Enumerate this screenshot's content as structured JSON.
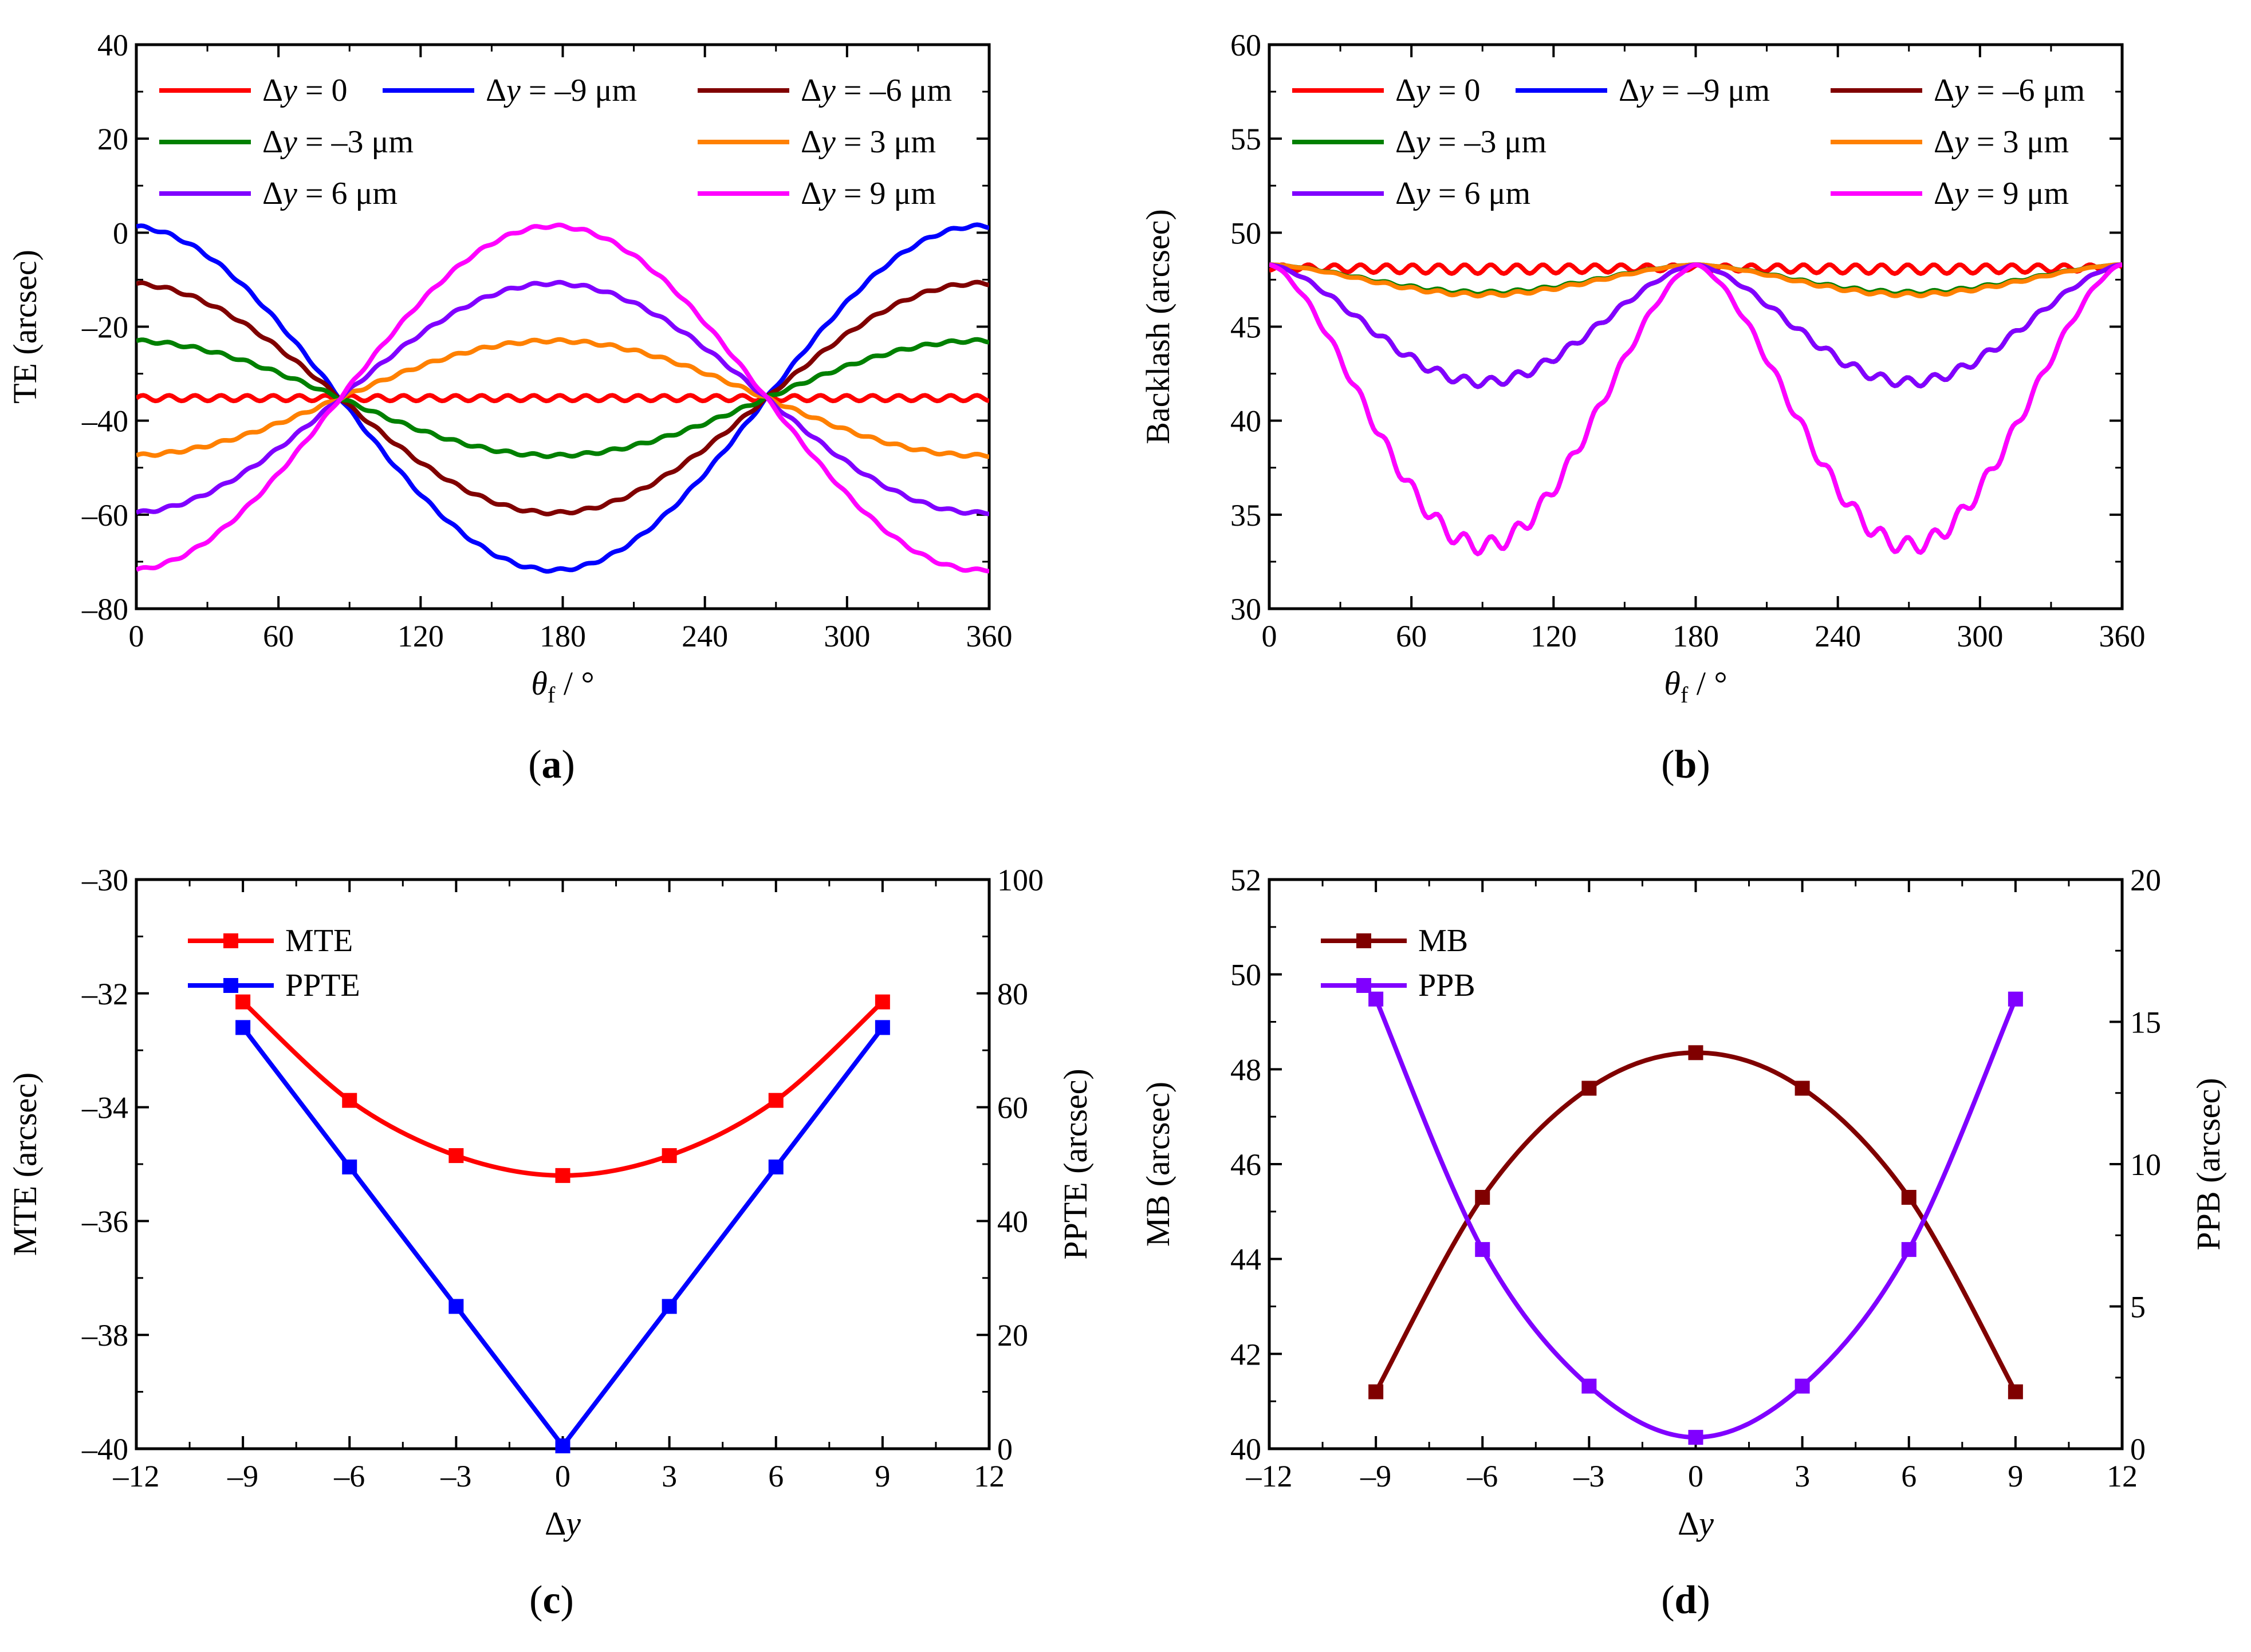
{
  "figure": {
    "panels": [
      {
        "id": "a",
        "caption": "(a)"
      },
      {
        "id": "b",
        "caption": "(b)"
      },
      {
        "id": "c",
        "caption": "(c)"
      },
      {
        "id": "d",
        "caption": "(d)"
      }
    ]
  },
  "colors": {
    "dy0": "#ff0000",
    "dym9": "#0000ff",
    "dym6": "#800000",
    "dym3": "#008000",
    "dy3": "#ff8000",
    "dy6": "#8000ff",
    "dy9": "#ff00ff"
  },
  "chart_data": [
    {
      "panel": "a",
      "type": "line",
      "xlabel": "θf / °",
      "ylabel": "TE (arcsec)",
      "xlim": [
        0,
        360
      ],
      "ylim": [
        -80,
        40
      ],
      "xticks": [
        0,
        60,
        120,
        180,
        240,
        300,
        360
      ],
      "yticks": [
        -80,
        -60,
        -40,
        -20,
        0,
        20,
        40
      ],
      "legend_position": "top",
      "model": "y = mean + amp*cos((x - 176) deg) + small ripple",
      "x_sample_step": 6,
      "series": [
        {
          "name": "Δy = 0",
          "color": "#ff0000",
          "mean": -35.2,
          "amp": 0,
          "ripple": 0.6,
          "ripple_period": 11,
          "points": [
            [
              0,
              -35.2
            ],
            [
              90,
              -35.2
            ],
            [
              180,
              -35.2
            ],
            [
              270,
              -35.2
            ],
            [
              360,
              -35.2
            ]
          ]
        },
        {
          "name": "Δy = –9 μm",
          "color": "#0000ff",
          "mean": -35.2,
          "amp": -36.6,
          "ripple": 0.3,
          "ripple_period": 11,
          "points": [
            [
              0,
              -72
            ],
            [
              90,
              -33
            ],
            [
              176,
              1.4
            ],
            [
              270,
              -38
            ],
            [
              360,
              -72
            ]
          ]
        },
        {
          "name": "Δy = –6 μm",
          "color": "#800000",
          "mean": -35.2,
          "amp": -24.4,
          "ripple": 0.3,
          "ripple_period": 11,
          "points": [
            [
              0,
              -59.6
            ],
            [
              90,
              -33.5
            ],
            [
              176,
              -10.8
            ],
            [
              270,
              -37
            ],
            [
              360,
              -59.6
            ]
          ]
        },
        {
          "name": "Δy = –3 μm",
          "color": "#008000",
          "mean": -35.2,
          "amp": -12.2,
          "ripple": 0.3,
          "ripple_period": 11,
          "points": [
            [
              0,
              -47.4
            ],
            [
              90,
              -34.3
            ],
            [
              176,
              -23
            ],
            [
              270,
              -36
            ],
            [
              360,
              -47.4
            ]
          ]
        },
        {
          "name": "Δy = 3 μm",
          "color": "#ff8000",
          "mean": -35.2,
          "amp": 12.2,
          "ripple": 0.3,
          "ripple_period": 11,
          "points": [
            [
              0,
              -23
            ],
            [
              90,
              -36
            ],
            [
              176,
              -47.4
            ],
            [
              270,
              -34.3
            ],
            [
              360,
              -23
            ]
          ]
        },
        {
          "name": "Δy = 6 μm",
          "color": "#8000ff",
          "mean": -35.2,
          "amp": 24.4,
          "ripple": 0.3,
          "ripple_period": 11,
          "points": [
            [
              0,
              -10.8
            ],
            [
              90,
              -37
            ],
            [
              176,
              -59.6
            ],
            [
              270,
              -33.5
            ],
            [
              360,
              -10.8
            ]
          ]
        },
        {
          "name": "Δy = 9 μm",
          "color": "#ff00ff",
          "mean": -35.2,
          "amp": 36.6,
          "ripple": 0.3,
          "ripple_period": 11,
          "points": [
            [
              0,
              1.4
            ],
            [
              90,
              -38
            ],
            [
              176,
              -72
            ],
            [
              270,
              -33
            ],
            [
              360,
              1.4
            ]
          ]
        }
      ]
    },
    {
      "panel": "b",
      "type": "line",
      "xlabel": "θf / °",
      "ylabel": "Backlash (arcsec)",
      "xlim": [
        0,
        360
      ],
      "ylim": [
        30,
        60
      ],
      "xticks": [
        0,
        60,
        120,
        180,
        240,
        300,
        360
      ],
      "yticks": [
        30,
        35,
        40,
        45,
        50,
        55,
        60
      ],
      "legend_position": "top",
      "model": "y = peak - dip*|sin(x deg)|^1.6 + ripple",
      "x_sample_step": 4,
      "series": [
        {
          "name": "Δy = 0",
          "color": "#ff0000",
          "peak": 48.3,
          "dip": 0,
          "ripple": 0.3,
          "ripple_period": 11,
          "points": [
            [
              0,
              48.3
            ],
            [
              90,
              48.3
            ],
            [
              180,
              48.3
            ],
            [
              270,
              48.3
            ],
            [
              360,
              48.3
            ]
          ]
        },
        {
          "name": "Δy = –9 μm",
          "color": "#0000ff",
          "peak": 48.3,
          "dip": 14.5,
          "ripple": 0.9,
          "ripple_period": 11,
          "points": [
            [
              0,
              48.3
            ],
            [
              90,
              33.8
            ],
            [
              180,
              48.3
            ],
            [
              270,
              33.8
            ],
            [
              360,
              48.3
            ]
          ]
        },
        {
          "name": "Δy = –6 μm",
          "color": "#800000",
          "peak": 48.3,
          "dip": 6.0,
          "ripple": 0.5,
          "ripple_period": 11,
          "points": [
            [
              0,
              48.3
            ],
            [
              90,
              42.3
            ],
            [
              180,
              48.3
            ],
            [
              270,
              42.0
            ],
            [
              360,
              48.3
            ]
          ]
        },
        {
          "name": "Δy = –3 μm",
          "color": "#008000",
          "peak": 48.3,
          "dip": 1.4,
          "ripple": 0.3,
          "ripple_period": 11,
          "points": [
            [
              0,
              48.3
            ],
            [
              90,
              46.9
            ],
            [
              180,
              48.3
            ],
            [
              270,
              46.9
            ],
            [
              360,
              48.3
            ]
          ]
        },
        {
          "name": "Δy = 3 μm",
          "color": "#ff8000",
          "peak": 48.3,
          "dip": 1.5,
          "ripple": 0.3,
          "ripple_period": 11,
          "points": [
            [
              0,
              48.3
            ],
            [
              90,
              46.8
            ],
            [
              180,
              48.3
            ],
            [
              270,
              46.8
            ],
            [
              360,
              48.3
            ]
          ]
        },
        {
          "name": "Δy = 6 μm",
          "color": "#8000ff",
          "peak": 48.3,
          "dip": 6.0,
          "ripple": 0.5,
          "ripple_period": 11,
          "points": [
            [
              0,
              48.3
            ],
            [
              90,
              42.0
            ],
            [
              180,
              48.3
            ],
            [
              270,
              42.3
            ],
            [
              360,
              48.3
            ]
          ]
        },
        {
          "name": "Δy = 9 μm",
          "color": "#ff00ff",
          "peak": 48.3,
          "dip": 14.5,
          "ripple": 0.9,
          "ripple_period": 11,
          "points": [
            [
              0,
              48.3
            ],
            [
              90,
              33.6
            ],
            [
              180,
              48.3
            ],
            [
              270,
              33.8
            ],
            [
              360,
              48.3
            ]
          ]
        }
      ]
    },
    {
      "panel": "c",
      "type": "line",
      "xlabel": "Δy",
      "ylabel": "MTE (arcsec)",
      "ylabel_right": "PPTE (arcsec)",
      "xlim": [
        -12,
        12
      ],
      "ylim": [
        -40,
        -30
      ],
      "ylim_right": [
        0,
        100
      ],
      "xticks": [
        -12,
        -9,
        -6,
        -3,
        0,
        3,
        6,
        9,
        12
      ],
      "yticks": [
        -40,
        -38,
        -36,
        -34,
        -32,
        -30
      ],
      "yticks_right": [
        0,
        20,
        40,
        60,
        80,
        100
      ],
      "legend_position": "top-left",
      "x": [
        -9,
        -6,
        -3,
        0,
        3,
        6,
        9
      ],
      "series": [
        {
          "name": "MTE",
          "axis": "left",
          "color": "#ff0000",
          "smooth": true,
          "values": [
            -32.15,
            -33.88,
            -34.85,
            -35.2,
            -34.85,
            -33.88,
            -32.15
          ]
        },
        {
          "name": "PPTE",
          "axis": "right",
          "color": "#0000ff",
          "smooth": false,
          "values": [
            74,
            49.5,
            25,
            0.5,
            25,
            49.5,
            74
          ]
        }
      ]
    },
    {
      "panel": "d",
      "type": "line",
      "xlabel": "Δy",
      "ylabel": "MB (arcsec)",
      "ylabel_right": "PPB (arcsec)",
      "xlim": [
        -12,
        12
      ],
      "ylim": [
        40,
        52
      ],
      "ylim_right": [
        0,
        20
      ],
      "xticks": [
        -12,
        -9,
        -6,
        -3,
        0,
        3,
        6,
        9,
        12
      ],
      "yticks": [
        40,
        42,
        44,
        46,
        48,
        50,
        52
      ],
      "yticks_right": [
        0,
        5,
        10,
        15,
        20
      ],
      "legend_position": "top-left",
      "x": [
        -9,
        -6,
        -3,
        0,
        3,
        6,
        9
      ],
      "series": [
        {
          "name": "MB",
          "axis": "left",
          "color": "#800000",
          "smooth": true,
          "values": [
            41.2,
            45.3,
            47.6,
            48.35,
            47.6,
            45.3,
            41.2
          ]
        },
        {
          "name": "PPB",
          "axis": "right",
          "color": "#8000ff",
          "smooth": true,
          "values": [
            15.8,
            7.0,
            2.2,
            0.4,
            2.2,
            7.0,
            15.8
          ]
        }
      ]
    }
  ]
}
